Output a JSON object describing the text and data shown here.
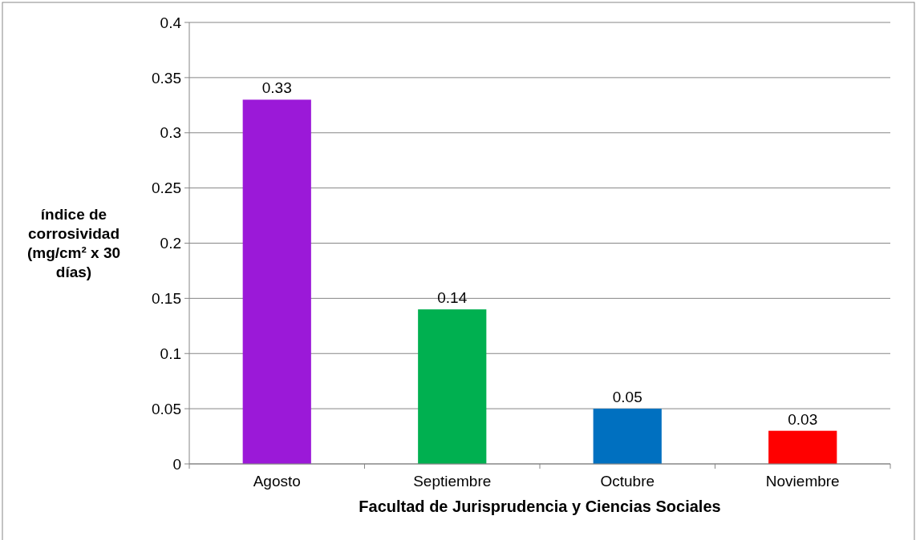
{
  "chart_data": {
    "type": "bar",
    "xlabel": "Facultad de Jurisprudencia y Ciencias Sociales",
    "ylabel": "índice de corrosividad (mg/cm² x 30 días)",
    "categories": [
      "Agosto",
      "Septiembre",
      "Octubre",
      "Noviembre"
    ],
    "values": [
      0.33,
      0.14,
      0.05,
      0.03
    ],
    "colors": [
      "#9b19d8",
      "#00b050",
      "#0070c0",
      "#ff0000"
    ],
    "ylim": [
      0,
      0.4
    ],
    "yticks": [
      0,
      0.05,
      0.1,
      0.15,
      0.2,
      0.25,
      0.3,
      0.35,
      0.4
    ],
    "grid": "y",
    "data_labels": true
  }
}
